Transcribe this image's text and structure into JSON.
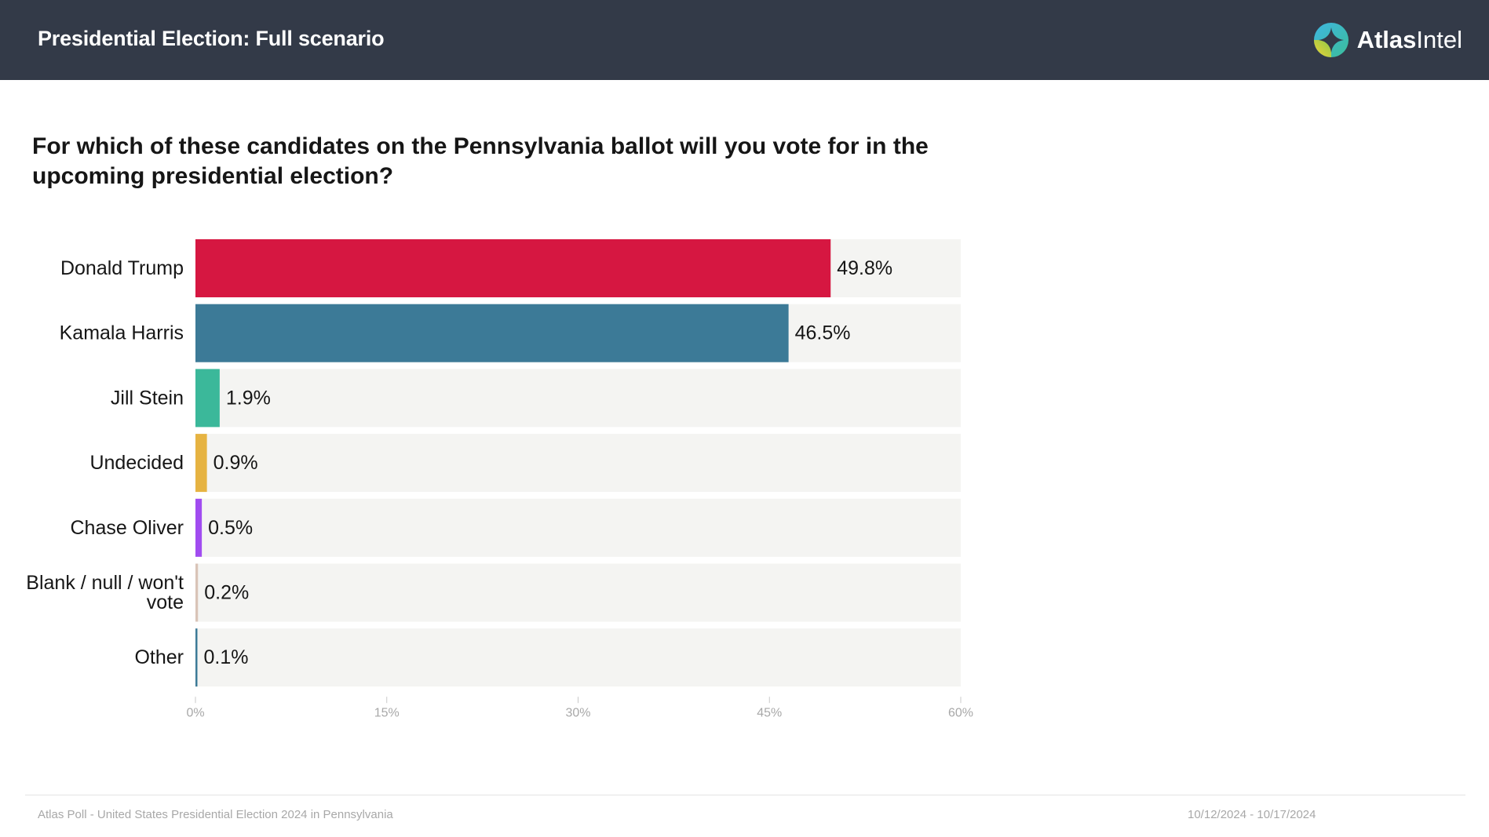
{
  "header": {
    "title": "Presidential Election: Full scenario",
    "brand_strong": "Atlas",
    "brand_light": "Intel",
    "logo_icon": "atlasintel-logo-icon"
  },
  "question": "For which of these candidates on the Pennsylvania ballot will you vote for in the upcoming presidential election?",
  "chart_data": {
    "type": "bar",
    "orientation": "horizontal",
    "categories": [
      "Donald Trump",
      "Kamala Harris",
      "Jill Stein",
      "Undecided",
      "Chase Oliver",
      "Blank / null / won't vote",
      "Other"
    ],
    "category_lines": [
      [
        "Donald Trump"
      ],
      [
        "Kamala Harris"
      ],
      [
        "Jill Stein"
      ],
      [
        "Undecided"
      ],
      [
        "Chase Oliver"
      ],
      [
        "Blank / null / won't",
        "vote"
      ],
      [
        "Other"
      ]
    ],
    "values": [
      49.8,
      46.5,
      1.9,
      0.9,
      0.5,
      0.2,
      0.1
    ],
    "data_labels": [
      "49.8%",
      "46.5%",
      "1.9%",
      "0.9%",
      "0.5%",
      "0.2%",
      "0.1%"
    ],
    "colors": [
      "#d61741",
      "#3c7a97",
      "#3bb89a",
      "#e6b342",
      "#a14cf0",
      "#d9c4b8",
      "#3c7a97"
    ],
    "track_color": "#f4f4f2",
    "xlim": [
      0,
      60
    ],
    "xticks": [
      0,
      15,
      30,
      45,
      60
    ],
    "xtick_labels": [
      "0%",
      "15%",
      "30%",
      "45%",
      "60%"
    ],
    "grid": false,
    "legend": "none"
  },
  "footer": {
    "source": "Atlas Poll - United States Presidential Election 2024 in Pennsylvania",
    "dates": "10/12/2024 - 10/17/2024"
  }
}
